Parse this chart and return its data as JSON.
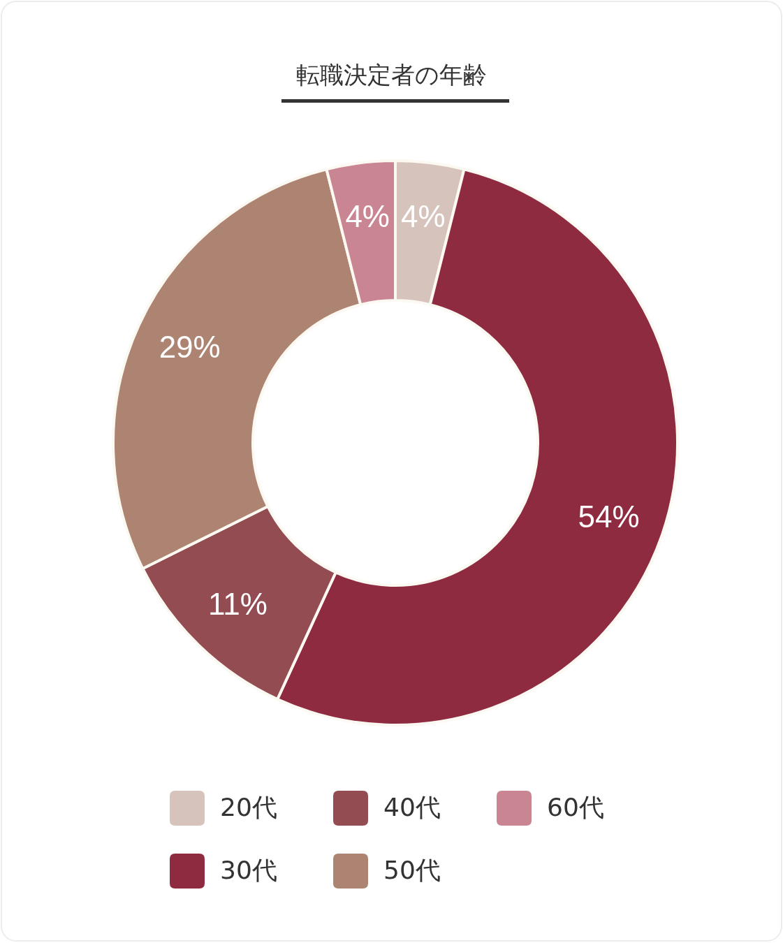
{
  "chart_data": {
    "type": "donut",
    "title": "転職決定者の年齢",
    "categories": [
      "20代",
      "30代",
      "40代",
      "50代",
      "60代"
    ],
    "values": [
      4,
      54,
      11,
      29,
      4
    ],
    "colors": [
      "#d6c4bc",
      "#8e2b41",
      "#924c52",
      "#ad8472",
      "#c98692"
    ],
    "value_labels": [
      "4%",
      "54%",
      "11%",
      "29%",
      "4%"
    ],
    "legend": "bottom"
  }
}
